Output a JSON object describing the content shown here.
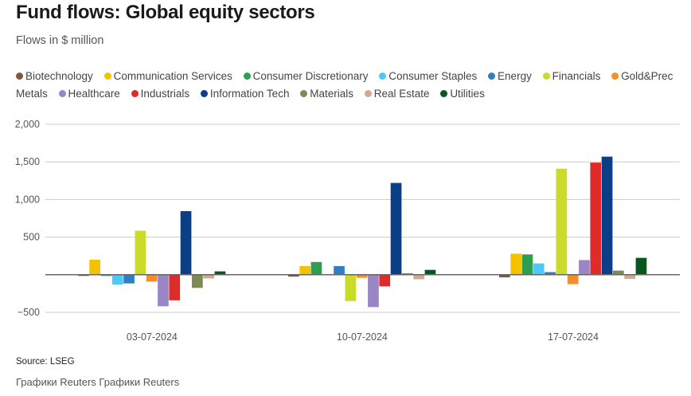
{
  "header": {
    "title": "Fund flows: Global equity sectors",
    "subtitle": "Flows in $ million"
  },
  "footer": {
    "source": "Source: LSEG",
    "credit": "Графики Reuters Графики Reuters"
  },
  "chart_data": {
    "type": "bar",
    "title": "Fund flows: Global equity sectors",
    "subtitle": "Flows in $ million",
    "xlabel": "",
    "ylabel": "",
    "ylim": [
      -500,
      2000
    ],
    "yticks": [
      2000,
      1500,
      1000,
      500,
      0,
      -500
    ],
    "ytick_labels": [
      "2,000",
      "1,500",
      "1,000",
      "500",
      "",
      "−500"
    ],
    "grid": true,
    "legend_position": "top",
    "categories": [
      "03-07-2024",
      "10-07-2024",
      "17-07-2024"
    ],
    "series": [
      {
        "name": "Biotechnology",
        "color": "#7b5a43",
        "values": [
          -10,
          -25,
          -35
        ]
      },
      {
        "name": "Communication Services",
        "color": "#f5c200",
        "values": [
          200,
          115,
          280
        ]
      },
      {
        "name": "Consumer Discretionary",
        "color": "#2e9e50",
        "values": [
          -15,
          170,
          270
        ]
      },
      {
        "name": "Consumer Staples",
        "color": "#4dc8fa",
        "values": [
          -130,
          10,
          150
        ]
      },
      {
        "name": "Energy",
        "color": "#2f80c2",
        "values": [
          -115,
          115,
          35
        ]
      },
      {
        "name": "Financials",
        "color": "#cadb2a",
        "values": [
          585,
          -350,
          1410
        ]
      },
      {
        "name": "Gold&Prec Metals",
        "color": "#f68d2a",
        "values": [
          -90,
          -40,
          -125
        ]
      },
      {
        "name": "Healthcare",
        "color": "#9b86c5",
        "values": [
          -420,
          -430,
          195
        ]
      },
      {
        "name": "Industrials",
        "color": "#e02b2b",
        "values": [
          -340,
          -155,
          1490
        ]
      },
      {
        "name": "Information Tech",
        "color": "#0a3f88",
        "values": [
          845,
          1220,
          1570
        ]
      },
      {
        "name": "Materials",
        "color": "#7e8a55",
        "values": [
          -175,
          20,
          55
        ]
      },
      {
        "name": "Real Estate",
        "color": "#d2aa92",
        "values": [
          -50,
          -60,
          -55
        ]
      },
      {
        "name": "Utilities",
        "color": "#05591f",
        "values": [
          45,
          65,
          225
        ]
      }
    ]
  }
}
